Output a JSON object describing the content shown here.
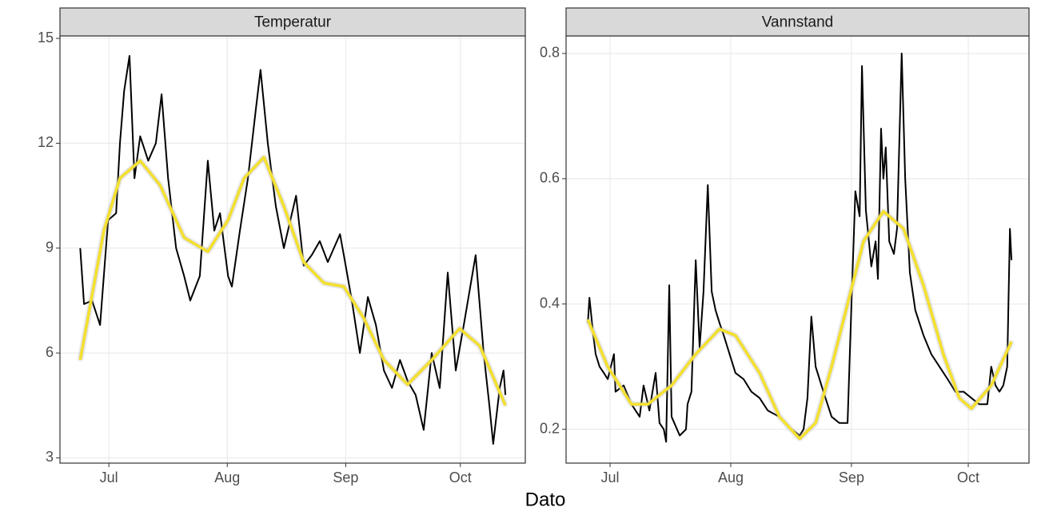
{
  "xlabel": "Dato",
  "chart_data": [
    {
      "type": "line",
      "title": "Temperatur",
      "xlim": [
        169.2,
        291.0
      ],
      "ylim": [
        2.85,
        15.07
      ],
      "xticks": [
        {
          "value": 182,
          "label": "Jul"
        },
        {
          "value": 213,
          "label": "Aug"
        },
        {
          "value": 244,
          "label": "Sep"
        },
        {
          "value": 274,
          "label": "Oct"
        }
      ],
      "yticks": [
        3,
        6,
        9,
        12,
        15
      ],
      "grid": true,
      "series": [
        {
          "color": "#000000",
          "x": [
            174.5,
            175.5,
            177.6,
            179.7,
            181.8,
            183.9,
            184.9,
            186.0,
            187.4,
            188.7,
            190.2,
            192.3,
            194.3,
            195.8,
            197.5,
            199.6,
            201.7,
            203.3,
            205.8,
            207.9,
            209.6,
            211.1,
            213.2,
            214.2,
            216.3,
            218.4,
            220.5,
            221.7,
            223.6,
            225.7,
            227.8,
            231.0,
            233.0,
            235.1,
            237.2,
            239.3,
            242.5,
            243.5,
            245.6,
            247.7,
            249.8,
            251.9,
            254.0,
            256.1,
            258.2,
            260.2,
            262.3,
            264.4,
            266.5,
            268.6,
            270.7,
            272.8,
            274.9,
            278.0,
            280.1,
            281.6,
            282.6,
            284.3,
            285.3,
            285.8
          ],
          "values": [
            9.0,
            7.4,
            7.5,
            6.8,
            9.8,
            10.0,
            12.0,
            13.5,
            14.5,
            11.0,
            12.2,
            11.5,
            12.0,
            13.4,
            11.0,
            9.0,
            8.2,
            7.5,
            8.2,
            11.5,
            9.5,
            10.0,
            8.2,
            7.9,
            9.5,
            11.0,
            13.0,
            14.1,
            12.0,
            10.2,
            9.0,
            10.5,
            8.5,
            8.8,
            9.2,
            8.6,
            9.4,
            8.8,
            7.5,
            6.0,
            7.6,
            6.8,
            5.5,
            5.0,
            5.8,
            5.2,
            4.8,
            3.8,
            6.0,
            5.0,
            8.3,
            5.5,
            6.8,
            8.8,
            6.0,
            4.5,
            3.4,
            5.0,
            5.5,
            4.8
          ]
        },
        {
          "color": "#f5e12e",
          "x": [
            174.5,
            180.7,
            184.9,
            190.2,
            195.4,
            201.7,
            207.9,
            213.2,
            217.4,
            222.6,
            227.8,
            233.0,
            238.3,
            243.5,
            248.7,
            254.0,
            260.2,
            266.5,
            273.8,
            279.1,
            285.8
          ],
          "values": [
            5.8,
            9.5,
            11.0,
            11.5,
            10.8,
            9.3,
            8.9,
            9.8,
            11.0,
            11.6,
            10.2,
            8.6,
            8.0,
            7.9,
            7.0,
            5.8,
            5.1,
            5.8,
            6.7,
            6.2,
            4.5
          ]
        }
      ]
    },
    {
      "type": "line",
      "title": "Vannstand",
      "xlim": [
        170.7,
        289.6
      ],
      "ylim": [
        0.146,
        0.828
      ],
      "xticks": [
        {
          "value": 182,
          "label": "Jul"
        },
        {
          "value": 213,
          "label": "Aug"
        },
        {
          "value": 244,
          "label": "Sep"
        },
        {
          "value": 274,
          "label": "Oct"
        }
      ],
      "yticks": [
        0.2,
        0.4,
        0.6,
        0.8
      ],
      "grid": true,
      "series": [
        {
          "color": "#000000",
          "x": [
            176.3,
            176.7,
            177.7,
            178.3,
            179.3,
            180.4,
            181.4,
            183.0,
            183.4,
            185.5,
            187.5,
            189.6,
            190.6,
            192.1,
            193.7,
            194.7,
            195.8,
            196.4,
            197.2,
            197.8,
            199.9,
            201.5,
            201.9,
            202.9,
            204.0,
            205.0,
            206.0,
            207.1,
            208.1,
            209.1,
            210.1,
            211.2,
            212.2,
            214.2,
            216.3,
            218.3,
            220.4,
            222.5,
            225.5,
            228.6,
            230.7,
            231.7,
            232.7,
            233.7,
            234.8,
            236.8,
            238.9,
            240.9,
            243.0,
            244.0,
            245.0,
            246.1,
            246.7,
            247.7,
            249.1,
            250.2,
            250.8,
            251.6,
            252.2,
            252.8,
            253.7,
            254.9,
            255.7,
            256.9,
            257.8,
            259.0,
            260.4,
            262.5,
            264.5,
            266.6,
            268.7,
            270.7,
            272.8,
            274.8,
            276.8,
            278.9,
            279.9,
            281.0,
            282.0,
            283.0,
            284.0,
            284.7,
            285.1
          ],
          "values": [
            0.37,
            0.41,
            0.35,
            0.32,
            0.3,
            0.29,
            0.28,
            0.32,
            0.26,
            0.27,
            0.24,
            0.22,
            0.27,
            0.23,
            0.29,
            0.21,
            0.2,
            0.18,
            0.43,
            0.22,
            0.19,
            0.2,
            0.24,
            0.26,
            0.47,
            0.33,
            0.42,
            0.59,
            0.42,
            0.39,
            0.37,
            0.35,
            0.33,
            0.29,
            0.28,
            0.26,
            0.25,
            0.23,
            0.22,
            0.2,
            0.19,
            0.2,
            0.25,
            0.38,
            0.3,
            0.26,
            0.22,
            0.21,
            0.21,
            0.4,
            0.58,
            0.54,
            0.78,
            0.55,
            0.46,
            0.5,
            0.44,
            0.68,
            0.6,
            0.65,
            0.5,
            0.48,
            0.52,
            0.8,
            0.6,
            0.45,
            0.39,
            0.35,
            0.32,
            0.3,
            0.28,
            0.26,
            0.26,
            0.25,
            0.24,
            0.24,
            0.3,
            0.27,
            0.26,
            0.27,
            0.3,
            0.52,
            0.47
          ]
        },
        {
          "color": "#f5e12e",
          "x": [
            176.3,
            181.4,
            187.5,
            191.7,
            197.8,
            204.0,
            210.1,
            214.2,
            220.4,
            225.5,
            230.7,
            234.8,
            238.9,
            243.0,
            247.1,
            252.2,
            257.4,
            262.5,
            267.6,
            271.7,
            274.8,
            279.9,
            285.1
          ],
          "values": [
            0.375,
            0.3,
            0.24,
            0.24,
            0.27,
            0.32,
            0.36,
            0.35,
            0.29,
            0.22,
            0.185,
            0.21,
            0.3,
            0.4,
            0.5,
            0.548,
            0.52,
            0.43,
            0.32,
            0.25,
            0.233,
            0.27,
            0.34
          ]
        }
      ]
    }
  ]
}
